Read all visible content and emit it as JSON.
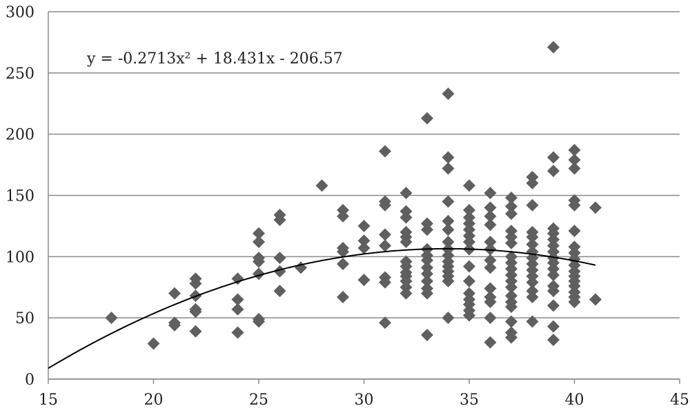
{
  "chart_data": {
    "type": "scatter",
    "title": "",
    "xlabel": "",
    "ylabel": "",
    "xlim": [
      15,
      45
    ],
    "ylim": [
      0,
      300
    ],
    "x_ticks": [
      15,
      20,
      25,
      30,
      35,
      40,
      45
    ],
    "y_ticks": [
      0,
      50,
      100,
      150,
      200,
      250,
      300
    ],
    "x_tick_labels": [
      "15",
      "20",
      "25",
      "30",
      "35",
      "40",
      "45"
    ],
    "y_tick_labels": [
      "0",
      "50",
      "100",
      "150",
      "200",
      "250",
      "300"
    ],
    "grid": "horizontal",
    "legend": "none",
    "marker": "diamond",
    "marker_color": "#5f5f5f",
    "trendline": {
      "type": "polynomial",
      "order": 2,
      "coefficients": [
        -0.2713,
        18.431,
        -206.57
      ],
      "x_range": [
        15,
        41
      ],
      "equation_text": "y = -0.2713x² + 18.431x - 206.57",
      "color": "#000000"
    },
    "points": [
      [
        18,
        50
      ],
      [
        20,
        29
      ],
      [
        21,
        70
      ],
      [
        21,
        46
      ],
      [
        21,
        44
      ],
      [
        22,
        82
      ],
      [
        22,
        78
      ],
      [
        22,
        68
      ],
      [
        22,
        57
      ],
      [
        22,
        55
      ],
      [
        22,
        39
      ],
      [
        24,
        82
      ],
      [
        24,
        65
      ],
      [
        24,
        57
      ],
      [
        24,
        38
      ],
      [
        25,
        119
      ],
      [
        25,
        112
      ],
      [
        25,
        99
      ],
      [
        25,
        96
      ],
      [
        25,
        86
      ],
      [
        25,
        49
      ],
      [
        25,
        47
      ],
      [
        26,
        134
      ],
      [
        26,
        130
      ],
      [
        26,
        99
      ],
      [
        26,
        88
      ],
      [
        26,
        72
      ],
      [
        27,
        91
      ],
      [
        28,
        158
      ],
      [
        29,
        138
      ],
      [
        29,
        133
      ],
      [
        29,
        107
      ],
      [
        29,
        104
      ],
      [
        29,
        94
      ],
      [
        29,
        67
      ],
      [
        30,
        125
      ],
      [
        30,
        113
      ],
      [
        30,
        107
      ],
      [
        30,
        81
      ],
      [
        31,
        186
      ],
      [
        31,
        145
      ],
      [
        31,
        142
      ],
      [
        31,
        118
      ],
      [
        31,
        109
      ],
      [
        31,
        83
      ],
      [
        31,
        79
      ],
      [
        31,
        46
      ],
      [
        32,
        152
      ],
      [
        32,
        137
      ],
      [
        32,
        132
      ],
      [
        32,
        120
      ],
      [
        32,
        116
      ],
      [
        32,
        112
      ],
      [
        32,
        96
      ],
      [
        32,
        92
      ],
      [
        32,
        87
      ],
      [
        32,
        84
      ],
      [
        32,
        80
      ],
      [
        32,
        75
      ],
      [
        32,
        70
      ],
      [
        33,
        213
      ],
      [
        33,
        127
      ],
      [
        33,
        122
      ],
      [
        33,
        106
      ],
      [
        33,
        101
      ],
      [
        33,
        97
      ],
      [
        33,
        91
      ],
      [
        33,
        86
      ],
      [
        33,
        80
      ],
      [
        33,
        74
      ],
      [
        33,
        70
      ],
      [
        33,
        36
      ],
      [
        34,
        233
      ],
      [
        34,
        181
      ],
      [
        34,
        172
      ],
      [
        34,
        145
      ],
      [
        34,
        129
      ],
      [
        34,
        122
      ],
      [
        34,
        112
      ],
      [
        34,
        106
      ],
      [
        34,
        101
      ],
      [
        34,
        96
      ],
      [
        34,
        92
      ],
      [
        34,
        88
      ],
      [
        34,
        84
      ],
      [
        34,
        80
      ],
      [
        34,
        50
      ],
      [
        35,
        158
      ],
      [
        35,
        138
      ],
      [
        35,
        132
      ],
      [
        35,
        127
      ],
      [
        35,
        122
      ],
      [
        35,
        117
      ],
      [
        35,
        112
      ],
      [
        35,
        106
      ],
      [
        35,
        92
      ],
      [
        35,
        80
      ],
      [
        35,
        70
      ],
      [
        35,
        65
      ],
      [
        35,
        61
      ],
      [
        35,
        56
      ],
      [
        35,
        52
      ],
      [
        36,
        152
      ],
      [
        36,
        140
      ],
      [
        36,
        133
      ],
      [
        36,
        126
      ],
      [
        36,
        112
      ],
      [
        36,
        106
      ],
      [
        36,
        97
      ],
      [
        36,
        91
      ],
      [
        36,
        74
      ],
      [
        36,
        67
      ],
      [
        36,
        63
      ],
      [
        36,
        50
      ],
      [
        36,
        30
      ],
      [
        37,
        148
      ],
      [
        37,
        141
      ],
      [
        37,
        135
      ],
      [
        37,
        121
      ],
      [
        37,
        116
      ],
      [
        37,
        111
      ],
      [
        37,
        100
      ],
      [
        37,
        95
      ],
      [
        37,
        90
      ],
      [
        37,
        85
      ],
      [
        37,
        80
      ],
      [
        37,
        75
      ],
      [
        37,
        68
      ],
      [
        37,
        63
      ],
      [
        37,
        59
      ],
      [
        37,
        47
      ],
      [
        37,
        38
      ],
      [
        37,
        34
      ],
      [
        38,
        165
      ],
      [
        38,
        160
      ],
      [
        38,
        142
      ],
      [
        38,
        120
      ],
      [
        38,
        116
      ],
      [
        38,
        110
      ],
      [
        38,
        104
      ],
      [
        38,
        99
      ],
      [
        38,
        94
      ],
      [
        38,
        89
      ],
      [
        38,
        84
      ],
      [
        38,
        79
      ],
      [
        38,
        72
      ],
      [
        38,
        67
      ],
      [
        38,
        47
      ],
      [
        39,
        271
      ],
      [
        39,
        181
      ],
      [
        39,
        170
      ],
      [
        39,
        123
      ],
      [
        39,
        119
      ],
      [
        39,
        114
      ],
      [
        39,
        109
      ],
      [
        39,
        104
      ],
      [
        39,
        99
      ],
      [
        39,
        95
      ],
      [
        39,
        90
      ],
      [
        39,
        85
      ],
      [
        39,
        76
      ],
      [
        39,
        72
      ],
      [
        39,
        60
      ],
      [
        39,
        43
      ],
      [
        39,
        32
      ],
      [
        40,
        187
      ],
      [
        40,
        179
      ],
      [
        40,
        172
      ],
      [
        40,
        146
      ],
      [
        40,
        142
      ],
      [
        40,
        121
      ],
      [
        40,
        108
      ],
      [
        40,
        103
      ],
      [
        40,
        98
      ],
      [
        40,
        93
      ],
      [
        40,
        88
      ],
      [
        40,
        84
      ],
      [
        40,
        80
      ],
      [
        40,
        76
      ],
      [
        40,
        71
      ],
      [
        40,
        67
      ],
      [
        40,
        63
      ],
      [
        41,
        140
      ],
      [
        41,
        65
      ]
    ]
  }
}
